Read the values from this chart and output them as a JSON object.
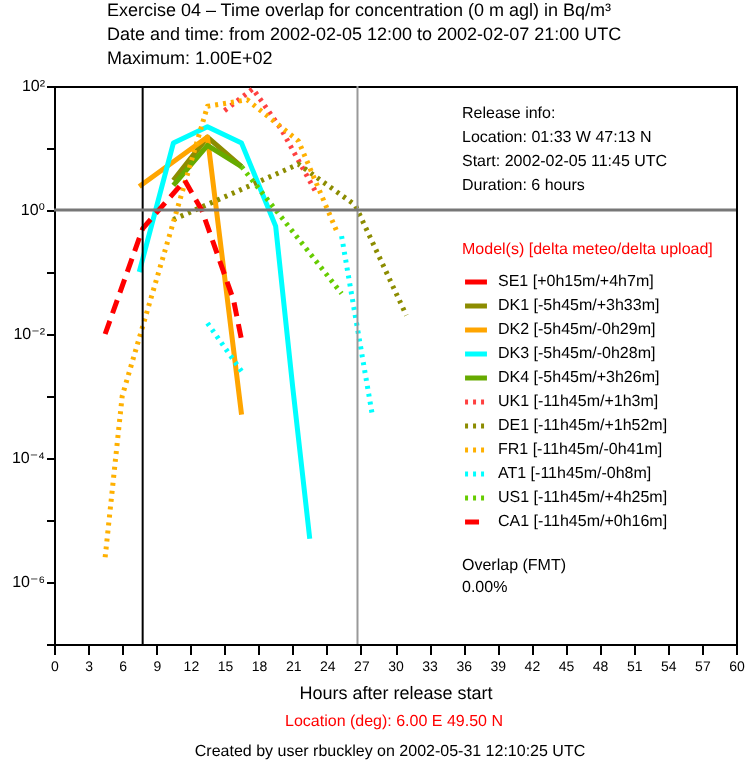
{
  "chart_data": {
    "type": "line",
    "title": "Exercise 04 – Time overlap for concentration (0 m agl) in Bq/m³",
    "subtitle": [
      "Date and time: from 2002-02-05 12:00 to 2002-02-07 21:00 UTC",
      "Maximum:  1.00E+02"
    ],
    "xlabel": "Hours after release start",
    "legend_title": "Model(s) [delta meteo/delta upload]",
    "legend": "right",
    "log": "y",
    "xlim": [
      0,
      60
    ],
    "xticks": [
      0,
      3,
      6,
      9,
      12,
      15,
      18,
      21,
      24,
      27,
      30,
      33,
      36,
      39,
      42,
      45,
      48,
      51,
      54,
      57,
      60
    ],
    "ylim": [
      1e-07,
      100
    ],
    "yticks": [
      {
        "value": 1e-07,
        "label": null
      },
      {
        "value": 1e-06,
        "label": "10⁻⁶"
      },
      {
        "value": 1e-05,
        "label": null
      },
      {
        "value": 0.0001,
        "label": "10⁻⁴"
      },
      {
        "value": 0.001,
        "label": null
      },
      {
        "value": 0.01,
        "label": "10⁻²"
      },
      {
        "value": 0.1,
        "label": null
      },
      {
        "value": 1,
        "label": "10⁰"
      },
      {
        "value": 10,
        "label": null
      },
      {
        "value": 100,
        "label": "10²"
      }
    ],
    "ref_lines": [
      {
        "axis": "x",
        "value": 7.8,
        "color": "#000000"
      },
      {
        "axis": "x",
        "value": 26.7,
        "color": "#999999"
      },
      {
        "axis": "y",
        "value": 1,
        "color": "#777777"
      }
    ],
    "series": [
      {
        "name": "SE1 [+0h15m/+4h7m]",
        "color": "#ff0000",
        "line_style": "solid"
      },
      {
        "name": "DK1 [-5h45m/+3h33m]",
        "color": "#8c8c00",
        "line_style": "solid",
        "x": [
          10.5,
          13.5,
          16.5
        ],
        "values": [
          3,
          15,
          5
        ]
      },
      {
        "name": "DK2 [-5h45m/-0h29m]",
        "color": "#ffa500",
        "line_style": "solid",
        "x": [
          7.5,
          13.5,
          16.5
        ],
        "values": [
          2.4,
          15,
          0.0005
        ]
      },
      {
        "name": "DK3 [-5h45m/-0h28m]",
        "color": "#00ffff",
        "line_style": "solid",
        "x": [
          7.5,
          10.5,
          13.5,
          16.5,
          19.5,
          21,
          22.5
        ],
        "values": [
          0.1,
          12,
          22,
          12,
          0.55,
          0.0014,
          5e-06
        ]
      },
      {
        "name": "DK4 [-5h45m/+3h26m]",
        "color": "#66aa00",
        "line_style": "solid",
        "x": [
          10.5,
          13.5,
          16.5
        ],
        "values": [
          2.5,
          11,
          5
        ]
      },
      {
        "name": "UK1 [-11h45m/+1h3m]",
        "color": "#ff4040",
        "line_style": "dotted",
        "x": [
          15,
          17.5,
          20,
          23
        ],
        "values": [
          40,
          90,
          20,
          2
        ]
      },
      {
        "name": "DE1 [-11h45m/+1h52m]",
        "color": "#8c8c00",
        "line_style": "dotted",
        "x": [
          10.5,
          21.5,
          26.5,
          31
        ],
        "values": [
          0.7,
          5.5,
          1.2,
          0.02
        ]
      },
      {
        "name": "FR1 [-11h45m/-0h41m]",
        "color": "#ffb000",
        "line_style": "dotted",
        "x": [
          4.5,
          6,
          13.5,
          17,
          21.5,
          25
        ],
        "values": [
          2.5e-06,
          0.001,
          47,
          60,
          13,
          0.4
        ]
      },
      {
        "name": "AT1 [-11h45m/-0h8m]",
        "color": "#00ffff",
        "line_style": "dotted",
        "x": [
          13.5,
          16.5,
          21,
          25.3,
          28
        ],
        "values": [
          0.015,
          0.0025,
          null,
          0.38,
          0.0005
        ]
      },
      {
        "name": "US1 [-11h45m/+4h25m]",
        "color": "#66cc00",
        "line_style": "dotted",
        "x": [
          16.5,
          25.3
        ],
        "values": [
          5,
          0.045
        ]
      },
      {
        "name": "CA1 [-11h45m/+0h16m]",
        "color": "#ff0000",
        "line_style": "dashed",
        "x": [
          4.5,
          7.8,
          11.5,
          13,
          15.8,
          16.5
        ],
        "values": [
          0.01,
          0.5,
          3,
          1,
          0.035,
          0.008
        ]
      }
    ],
    "annotations": [
      "Release info:",
      "Location: 01:33 W 47:13 N",
      "Start: 2002-02-05 11:45 UTC",
      "Duration: 6 hours",
      "Overlap (FMT)",
      "0.00%",
      "Location (deg): 6.00 E  49.50 N",
      "Created by user rbuckley on 2002-05-31 12:10:25 UTC"
    ]
  }
}
